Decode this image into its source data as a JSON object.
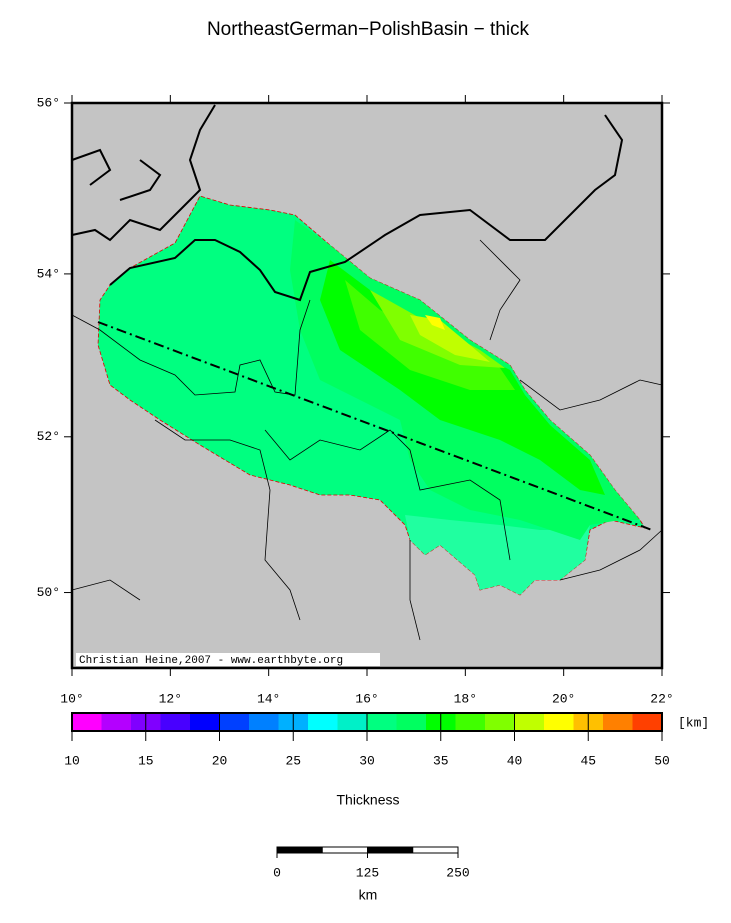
{
  "chart_data": {
    "type": "map",
    "title": "NortheastGerman−PolishBasin − thick",
    "credit": "Christian Heine,2007 - www.earthbyte.org",
    "xlim": [
      10,
      22
    ],
    "ylim": [
      49,
      56
    ],
    "xticks": [
      {
        "value": 10,
        "label": "10°"
      },
      {
        "value": 12,
        "label": "12°"
      },
      {
        "value": 14,
        "label": "14°"
      },
      {
        "value": 16,
        "label": "16°"
      },
      {
        "value": 18,
        "label": "18°"
      },
      {
        "value": 20,
        "label": "20°"
      },
      {
        "value": 22,
        "label": "22°"
      }
    ],
    "yticks": [
      {
        "value": 50,
        "label": "50°"
      },
      {
        "value": 52,
        "label": "52°"
      },
      {
        "value": 54,
        "label": "54°"
      },
      {
        "value": 56,
        "label": "56°"
      }
    ],
    "colorbar": {
      "label": "Thickness",
      "unit": "[km]",
      "lim": [
        10,
        50
      ],
      "ticks": [
        10,
        15,
        20,
        25,
        30,
        35,
        40,
        45,
        50
      ],
      "colors": [
        "#ff00ff",
        "#b400ff",
        "#8000ff",
        "#4800ff",
        "#0000ff",
        "#0040ff",
        "#0080ff",
        "#00b0ff",
        "#00ffff",
        "#00f0c8",
        "#00ff80",
        "#00ff60",
        "#00ff00",
        "#40ff00",
        "#80ff00",
        "#c0ff00",
        "#ffff00",
        "#ffc000",
        "#ff8000",
        "#ff4000"
      ]
    },
    "scalebar": {
      "ticks": [
        0,
        125,
        250
      ],
      "unit": "km"
    }
  }
}
